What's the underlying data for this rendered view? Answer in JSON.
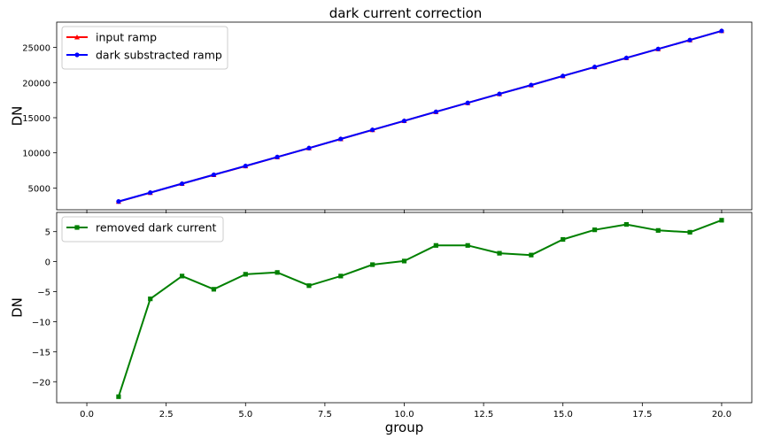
{
  "figure": {
    "title": "dark current correction"
  },
  "chart_data": [
    {
      "type": "line",
      "title": "dark current correction",
      "xlabel": "",
      "ylabel": "DN",
      "xlim": [
        -0.95,
        20.95
      ],
      "ylim": [
        1900,
        28600
      ],
      "yticks": [
        5000,
        10000,
        15000,
        20000,
        25000
      ],
      "ytick_labels": [
        "5000",
        "10000",
        "15000",
        "20000",
        "25000"
      ],
      "legend_position": "top-left",
      "x": [
        1,
        2,
        3,
        4,
        5,
        6,
        7,
        8,
        9,
        10,
        11,
        12,
        13,
        14,
        15,
        16,
        17,
        18,
        19,
        20
      ],
      "series": [
        {
          "name": "input ramp",
          "color": "#ff0000",
          "marker": "triangle",
          "values": [
            3060,
            4330,
            5610,
            6870,
            8120,
            9400,
            10680,
            11970,
            13260,
            14550,
            15840,
            17110,
            18380,
            19650,
            20940,
            22220,
            23510,
            24780,
            26050,
            27350
          ]
        },
        {
          "name": "dark substracted ramp",
          "color": "#0000ff",
          "marker": "circle",
          "values": [
            3080,
            4340,
            5610,
            6880,
            8130,
            9410,
            10680,
            11980,
            13270,
            14550,
            15840,
            17110,
            18380,
            19650,
            20940,
            22220,
            23510,
            24780,
            26050,
            27350
          ]
        }
      ]
    },
    {
      "type": "line",
      "title": "",
      "xlabel": "group",
      "ylabel": "DN",
      "xlim": [
        -0.95,
        20.95
      ],
      "ylim": [
        -23.5,
        8.2
      ],
      "xticks": [
        0,
        2.5,
        5,
        7.5,
        10,
        12.5,
        15,
        17.5,
        20
      ],
      "xtick_labels": [
        "0.0",
        "2.5",
        "5.0",
        "7.5",
        "10.0",
        "12.5",
        "15.0",
        "17.5",
        "20.0"
      ],
      "yticks": [
        5,
        0,
        -5,
        -10,
        -15,
        -20
      ],
      "ytick_labels": [
        "5",
        "0",
        "−5",
        "−10",
        "−15",
        "−20"
      ],
      "legend_position": "top-left",
      "x": [
        1,
        2,
        3,
        4,
        5,
        6,
        7,
        8,
        9,
        10,
        11,
        12,
        13,
        14,
        15,
        16,
        17,
        18,
        19,
        20
      ],
      "series": [
        {
          "name": "removed dark current",
          "color": "#008000",
          "marker": "square",
          "values": [
            -22.5,
            -6.2,
            -2.4,
            -4.6,
            -2.1,
            -1.8,
            -4.0,
            -2.4,
            -0.5,
            0.1,
            2.7,
            2.7,
            1.4,
            1.1,
            3.7,
            5.3,
            6.2,
            5.2,
            4.9,
            6.9
          ]
        }
      ]
    }
  ]
}
